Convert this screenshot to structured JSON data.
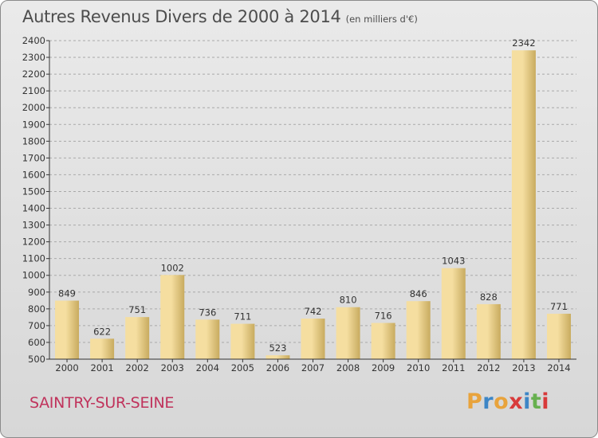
{
  "title": "Autres Revenus Divers de 2000 à 2014",
  "subtitle": "(en milliers d'€)",
  "city": "SAINTRY-SUR-SEINE",
  "logo": {
    "letters": [
      "P",
      "r",
      "o",
      "x",
      "i",
      "t",
      "i"
    ],
    "colors": [
      "#e8a33c",
      "#3d86c6",
      "#e8a33c",
      "#d83a3a",
      "#3d86c6",
      "#67b04f",
      "#d83a3a"
    ]
  },
  "colors": {
    "bar_light": "#f5dea0",
    "bar_dark": "#c8ab5f",
    "grid": "#a9a9a9",
    "axis": "#333333"
  },
  "chart_data": {
    "type": "bar",
    "categories": [
      "2000",
      "2001",
      "2002",
      "2003",
      "2004",
      "2005",
      "2006",
      "2007",
      "2008",
      "2009",
      "2010",
      "2011",
      "2012",
      "2013",
      "2014"
    ],
    "values": [
      849,
      622,
      751,
      1002,
      736,
      711,
      523,
      742,
      810,
      716,
      846,
      1043,
      828,
      2342,
      771
    ],
    "ylim": [
      500,
      2400
    ],
    "yticks": [
      500,
      600,
      700,
      800,
      900,
      1000,
      1100,
      1200,
      1300,
      1400,
      1500,
      1600,
      1700,
      1800,
      1900,
      2000,
      2100,
      2200,
      2300,
      2400
    ],
    "grid": true
  }
}
